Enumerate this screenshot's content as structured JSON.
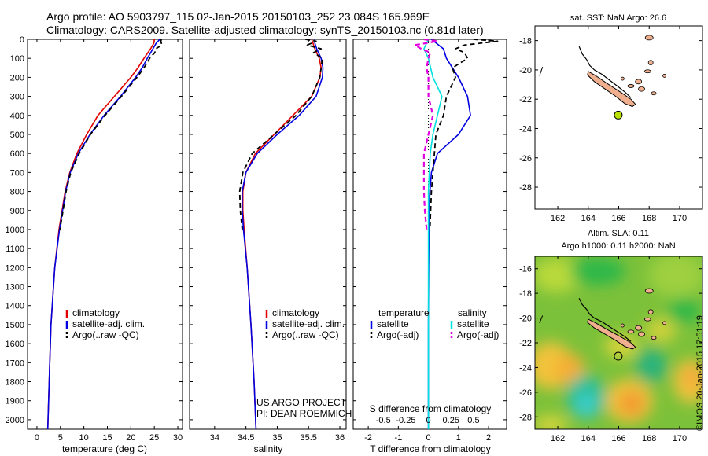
{
  "header": {
    "title_line1": "Argo profile: AO 5903797_115 02-Jan-2015 20150103_252 23.084S 165.969E",
    "title_line2": "Climatology: CARS2009. Satellite-adjusted climatology: synTS_20150103.nc (0.81d later)"
  },
  "credits": {
    "project": "US ARGO PROJECT",
    "pi": "PI: DEAN ROEMMICH",
    "stamp": "©IMOS 20-Jan-2015 17:51:19"
  },
  "colors": {
    "climatology": "#e00000",
    "satellite": "#0000e0",
    "argo": "#000000",
    "salinity_sat": "#00e0e0",
    "salinity_argo": "#e000e0",
    "land": "#f0b090",
    "float": "#b8e000"
  },
  "depth_axis": {
    "ylim": [
      0,
      2050
    ],
    "ticks": [
      0,
      100,
      200,
      300,
      400,
      500,
      600,
      700,
      800,
      900,
      1000,
      1100,
      1200,
      1300,
      1400,
      1500,
      1600,
      1700,
      1800,
      1900,
      2000
    ]
  },
  "chart_data": [
    {
      "id": "temperature",
      "type": "line",
      "xlabel": "temperature (deg C)",
      "xlim": [
        -2,
        31
      ],
      "xticks": [
        0,
        5,
        10,
        15,
        20,
        25,
        30
      ],
      "ylim": [
        2050,
        0
      ],
      "legend": [
        "climatology",
        "satellite-adj. clim.",
        "Argo(..raw -QC)"
      ],
      "series": [
        {
          "name": "climatology",
          "role": "climatology",
          "depth": [
            0,
            20,
            50,
            100,
            150,
            200,
            300,
            400,
            500,
            600,
            700,
            800,
            1000,
            1200,
            1500,
            1800,
            2050
          ],
          "values": [
            25.0,
            24.9,
            24.2,
            22.8,
            21.5,
            20.0,
            16.5,
            13.0,
            10.6,
            8.5,
            7.0,
            6.0,
            4.7,
            3.8,
            3.0,
            2.6,
            2.3
          ]
        },
        {
          "name": "satellite-adj. clim.",
          "role": "satellite",
          "depth": [
            0,
            20,
            50,
            100,
            150,
            200,
            300,
            400,
            500,
            600,
            700,
            800,
            1000,
            1200,
            1500,
            1800,
            2050
          ],
          "values": [
            26.2,
            25.4,
            24.7,
            23.5,
            22.4,
            21.0,
            17.8,
            14.3,
            11.3,
            8.8,
            7.1,
            6.1,
            4.8,
            3.8,
            3.0,
            2.6,
            2.3
          ]
        },
        {
          "name": "Argo(..raw -QC)",
          "role": "argo",
          "depth": [
            0,
            10,
            30,
            50,
            70,
            100,
            150,
            200,
            300,
            400,
            500,
            600,
            700,
            800,
            1000
          ],
          "values": [
            26.5,
            26.4,
            26.6,
            25.3,
            25.1,
            24.0,
            22.8,
            21.3,
            18.0,
            14.5,
            11.4,
            9.0,
            7.2,
            6.2,
            4.9
          ]
        }
      ]
    },
    {
      "id": "salinity",
      "type": "line",
      "xlabel": "salinity",
      "xlim": [
        33.6,
        36.1
      ],
      "xticks": [
        34,
        34.5,
        35,
        35.5,
        36
      ],
      "ylim": [
        2050,
        0
      ],
      "legend": [
        "climatology",
        "satellite-adj. clim.",
        "Argo(..raw -QC)"
      ],
      "series": [
        {
          "name": "climatology",
          "role": "climatology",
          "depth": [
            0,
            20,
            50,
            100,
            150,
            200,
            300,
            400,
            500,
            600,
            700,
            800,
            900,
            1000,
            1200,
            1500,
            1800,
            2050
          ],
          "values": [
            35.55,
            35.57,
            35.6,
            35.67,
            35.7,
            35.68,
            35.55,
            35.25,
            34.95,
            34.65,
            34.5,
            34.45,
            34.45,
            34.47,
            34.52,
            34.58,
            34.63,
            34.66
          ]
        },
        {
          "name": "satellite-adj. clim.",
          "role": "satellite",
          "depth": [
            0,
            20,
            50,
            100,
            150,
            200,
            300,
            400,
            500,
            600,
            700,
            800,
            900,
            1000,
            1200,
            1500,
            1800,
            2050
          ],
          "values": [
            35.6,
            35.6,
            35.63,
            35.7,
            35.73,
            35.72,
            35.62,
            35.35,
            35.0,
            34.68,
            34.5,
            34.44,
            34.44,
            34.46,
            34.52,
            34.58,
            34.63,
            34.66
          ]
        },
        {
          "name": "Argo(..raw -QC)",
          "role": "argo",
          "depth": [
            0,
            10,
            30,
            50,
            70,
            100,
            150,
            200,
            300,
            400,
            500,
            600,
            700,
            800,
            900,
            1000
          ],
          "values": [
            35.45,
            35.62,
            35.48,
            35.7,
            35.58,
            35.72,
            35.7,
            35.68,
            35.55,
            35.3,
            34.95,
            34.6,
            34.45,
            34.4,
            34.41,
            34.44
          ]
        }
      ]
    },
    {
      "id": "difference",
      "type": "line",
      "xlabel": "T difference from climatology",
      "xlabel_top": "S difference from climatology",
      "xlim": [
        -2.5,
        2.6
      ],
      "xticks": [
        -2,
        -1,
        0,
        1,
        2
      ],
      "xticks_S": [
        -0.5,
        -0.25,
        0,
        0.25,
        0.5
      ],
      "ylim": [
        2050,
        0
      ],
      "legend_temperature_title": "temperature",
      "legend_salinity_title": "salinity",
      "legend": [
        "satellite",
        "Argo(-adj)",
        "satellite",
        "Argo(-adj)"
      ],
      "series": [
        {
          "name": "satellite",
          "role": "satellite",
          "variable": "temperature",
          "depth": [
            0,
            50,
            100,
            200,
            300,
            400,
            500,
            600,
            700,
            800,
            900,
            1000,
            1200,
            1500,
            1800,
            2050
          ],
          "values": [
            0.1,
            0.5,
            0.6,
            1.0,
            1.3,
            1.4,
            1.0,
            0.3,
            0.1,
            0.05,
            0.03,
            0.02,
            0.01,
            0,
            0,
            0
          ]
        },
        {
          "name": "Argo(-adj)",
          "role": "argo",
          "variable": "temperature",
          "depth": [
            0,
            10,
            30,
            50,
            70,
            100,
            150,
            200,
            300,
            400,
            500,
            600,
            700,
            800,
            1000
          ],
          "values": [
            1.5,
            2.3,
            1.2,
            0.9,
            1.2,
            1.3,
            0.8,
            0.9,
            0.6,
            0.5,
            0.25,
            0.2,
            0.15,
            0.1,
            0.05
          ]
        },
        {
          "name": "satellite",
          "role": "salinity_sat",
          "variable": "salinity",
          "depth": [
            0,
            50,
            100,
            200,
            300,
            400,
            500,
            600,
            700,
            800,
            1000,
            1200,
            1500,
            1800,
            2050
          ],
          "values": [
            0.0,
            -0.05,
            0.0,
            0.05,
            0.15,
            0.1,
            0.05,
            0.02,
            0.01,
            0.0,
            0.0,
            0.0,
            0.0,
            0.0,
            0.0
          ]
        },
        {
          "name": "Argo(-adj)",
          "role": "salinity_argo",
          "variable": "salinity",
          "depth": [
            0,
            10,
            30,
            50,
            70,
            100,
            150,
            200,
            300,
            400,
            500,
            600,
            700,
            800,
            900,
            1000
          ],
          "values": [
            -0.05,
            0.1,
            -0.15,
            -0.08,
            0.02,
            0.0,
            -0.02,
            0.0,
            0.0,
            0.05,
            0.0,
            -0.05,
            -0.05,
            -0.05,
            -0.04,
            -0.02
          ]
        }
      ]
    },
    {
      "id": "sst_map",
      "type": "map",
      "title": "sat. SST: NaN Argo: 26.6",
      "xlim": [
        160.5,
        171.5
      ],
      "ylim": [
        -29.5,
        -17
      ],
      "xticks": [
        162,
        164,
        166,
        168,
        170
      ],
      "yticks": [
        -18,
        -20,
        -22,
        -24,
        -26,
        -28
      ],
      "float_position": {
        "lon": 165.969,
        "lat": -23.084
      }
    },
    {
      "id": "sla_map",
      "type": "heatmap",
      "title_line1": "Altim. SLA: 0.11",
      "title_line2": "Argo h1000: 0.11 h2000: NaN",
      "xlim": [
        160.5,
        171.5
      ],
      "ylim": [
        -29.0,
        -15.0
      ],
      "xticks": [
        162,
        164,
        166,
        168,
        170
      ],
      "yticks": [
        -16,
        -18,
        -20,
        -22,
        -24,
        -26,
        -28
      ],
      "float_position": {
        "lon": 165.969,
        "lat": -23.084
      }
    }
  ]
}
